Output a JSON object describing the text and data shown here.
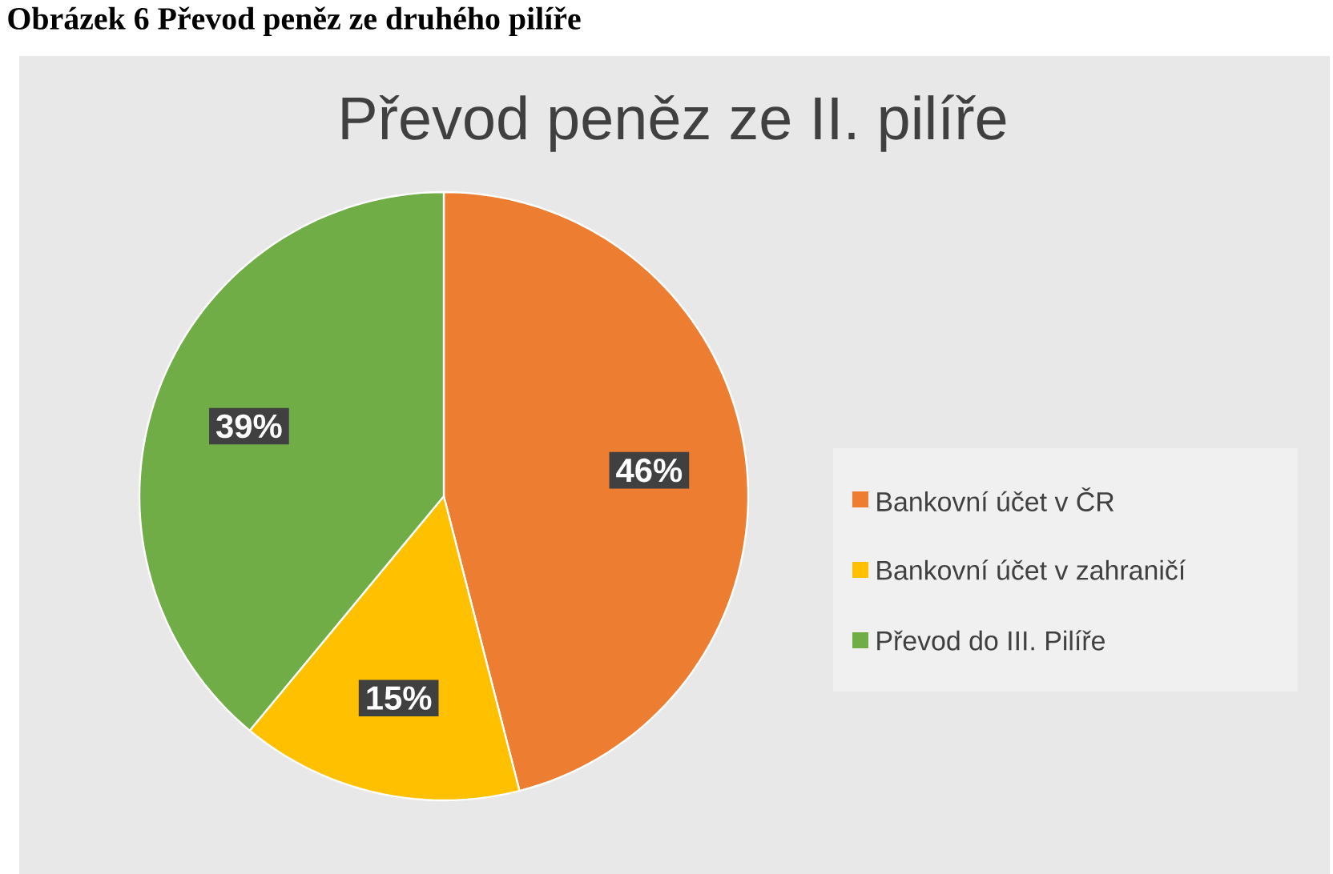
{
  "chart_data": {
    "type": "pie",
    "title": "Převod peněz ze II. pilíře",
    "annotations": [
      "Obrázek 6 Převod peněz ze druhého pilíře"
    ],
    "categories": [
      "Bankovní účet v ČR",
      "Bankovní účet v zahraničí",
      "Převod do III. Pilíře"
    ],
    "values": [
      46,
      15,
      39
    ],
    "colors": [
      "#ed7d31",
      "#ffc000",
      "#70ad47"
    ],
    "value_labels": [
      "46%",
      "15%",
      "39%"
    ],
    "legend": "right"
  }
}
